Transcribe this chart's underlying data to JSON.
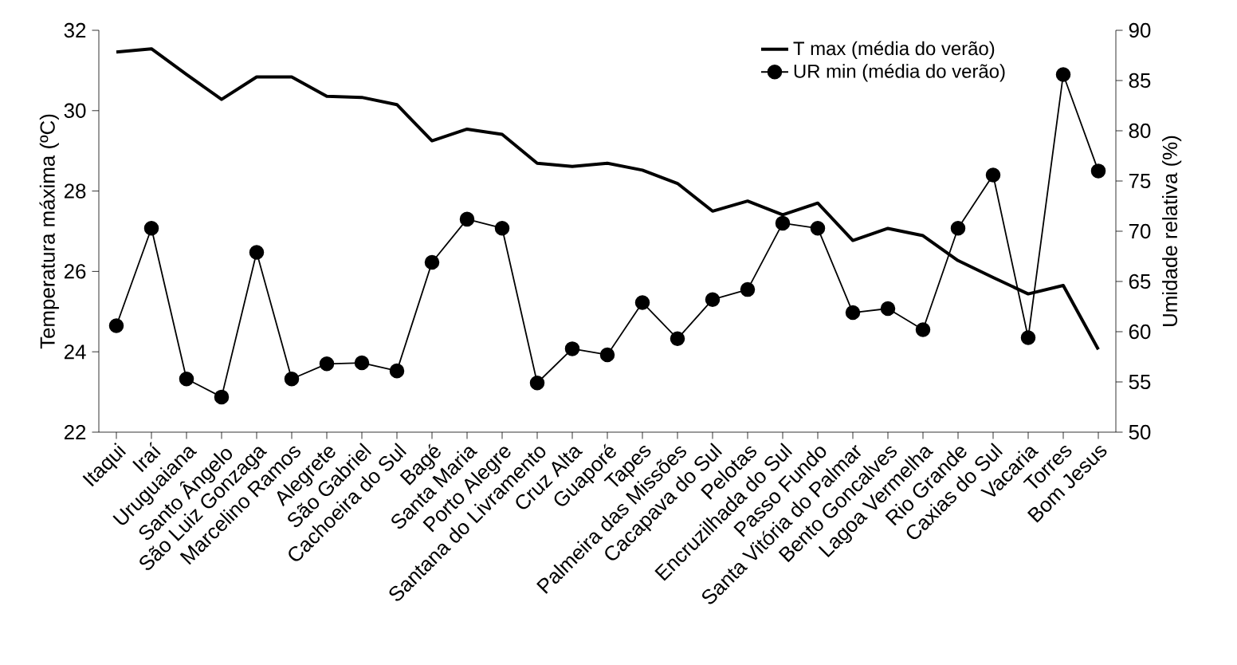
{
  "chart_data": {
    "type": "line",
    "ylabel": "Temperatura máxima (ºC)",
    "y2label": "Umidade relativa (%)",
    "categories": [
      "Itaqui",
      "Iraí",
      "Uruguaiana",
      "Santo Ângelo",
      "São Luiz Gonzaga",
      "Marcelino Ramos",
      "Alegrete",
      "São Gabriel",
      "Cachoeira do Sul",
      "Bagé",
      "Santa Maria",
      "Porto Alegre",
      "Santana do Livramento",
      "Cruz Alta",
      "Guaporé",
      "Tapes",
      "Palmeira das Missões",
      "Cacapava do Sul",
      "Pelotas",
      "Encruzilhada do Sul",
      "Passo Fundo",
      "Santa Vitória do Palmar",
      "Bento Goncalves",
      "Lagoa Vermelha",
      "Rio Grande",
      "Caxias do Sul",
      "Vacaria",
      "Torres",
      "Bom Jesus"
    ],
    "series": [
      {
        "name": "T max (média do verão)",
        "color": "#000000",
        "marker": "none",
        "values": [
          31.46,
          31.54,
          30.9,
          30.28,
          30.84,
          30.84,
          30.36,
          30.33,
          30.15,
          29.25,
          29.54,
          29.41,
          28.69,
          28.61,
          28.69,
          28.52,
          28.19,
          27.5,
          27.75,
          27.41,
          27.7,
          26.77,
          27.07,
          26.89,
          26.27,
          25.85,
          25.44,
          25.65,
          24.06
        ]
      },
      {
        "name": "UR min (média do verão)",
        "color": "#000000",
        "marker": "circle",
        "axis": "y2",
        "values": [
          60.6,
          70.3,
          55.3,
          53.5,
          67.9,
          55.3,
          56.8,
          56.9,
          56.1,
          66.9,
          71.2,
          70.3,
          54.9,
          58.3,
          57.7,
          62.9,
          59.3,
          63.2,
          64.2,
          70.8,
          70.3,
          61.9,
          62.3,
          60.2,
          70.3,
          75.6,
          59.4,
          85.6,
          76.0
        ]
      }
    ],
    "ylim": [
      22,
      32
    ],
    "yticks": [
      22,
      24,
      26,
      28,
      30,
      32
    ],
    "y2lim": [
      50,
      90
    ],
    "y2ticks": [
      50,
      55,
      60,
      65,
      70,
      75,
      80,
      85,
      90
    ],
    "legend": "top right",
    "grid": false
  }
}
